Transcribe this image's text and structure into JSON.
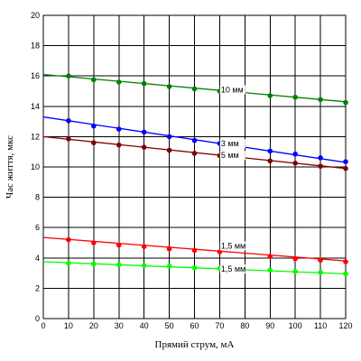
{
  "chart_data": {
    "type": "line",
    "xlabel": "Прямий струм, мА",
    "ylabel": "Час життя, мкс",
    "xlim": [
      0,
      120
    ],
    "ylim": [
      0,
      20
    ],
    "x_ticks": [
      0,
      10,
      20,
      30,
      40,
      50,
      60,
      70,
      80,
      90,
      100,
      110,
      120
    ],
    "y_ticks": [
      0,
      2,
      4,
      6,
      8,
      10,
      12,
      14,
      16,
      18,
      20
    ],
    "grid": true,
    "legend": "none",
    "series": [
      {
        "name": "10 мм",
        "color": "#008000",
        "line": {
          "x": [
            0,
            120
          ],
          "y": [
            16.1,
            14.3
          ]
        },
        "x": [
          10,
          20,
          30,
          40,
          50,
          60,
          70,
          90,
          100,
          110,
          120
        ],
        "y": [
          16.0,
          15.75,
          15.6,
          15.5,
          15.3,
          15.15,
          15.0,
          14.7,
          14.6,
          14.45,
          14.25
        ]
      },
      {
        "name": "3 мм",
        "color": "#0000ff",
        "line": {
          "x": [
            0,
            120
          ],
          "y": [
            13.3,
            10.3
          ]
        },
        "x": [
          10,
          20,
          30,
          40,
          50,
          60,
          70,
          90,
          100,
          110,
          120
        ],
        "y": [
          13.05,
          12.7,
          12.5,
          12.3,
          12.0,
          11.75,
          11.55,
          11.05,
          10.85,
          10.6,
          10.35
        ]
      },
      {
        "name": "5 мм",
        "color": "#800000",
        "line": {
          "x": [
            0,
            120
          ],
          "y": [
            12.0,
            9.9
          ]
        },
        "x": [
          10,
          20,
          30,
          40,
          50,
          60,
          70,
          90,
          100,
          110,
          120
        ],
        "y": [
          11.85,
          11.6,
          11.45,
          11.3,
          11.1,
          10.9,
          10.75,
          10.4,
          10.25,
          10.05,
          9.9
        ]
      },
      {
        "name": "1,5 мм",
        "color": "#ff0000",
        "line": {
          "x": [
            0,
            120
          ],
          "y": [
            5.35,
            3.8
          ]
        },
        "x": [
          10,
          20,
          30,
          40,
          50,
          60,
          70,
          90,
          100,
          110,
          120
        ],
        "y": [
          5.2,
          5.0,
          4.85,
          4.75,
          4.6,
          4.5,
          4.4,
          4.1,
          3.95,
          3.85,
          3.75
        ]
      },
      {
        "name": "1,5 мм",
        "color": "#00ff00",
        "line": {
          "x": [
            0,
            120
          ],
          "y": [
            3.75,
            2.95
          ]
        },
        "x": [
          10,
          20,
          30,
          40,
          50,
          60,
          70,
          90,
          100,
          110,
          120
        ],
        "y": [
          3.65,
          3.6,
          3.55,
          3.5,
          3.45,
          3.35,
          3.3,
          3.2,
          3.1,
          3.05,
          2.95
        ]
      }
    ]
  }
}
